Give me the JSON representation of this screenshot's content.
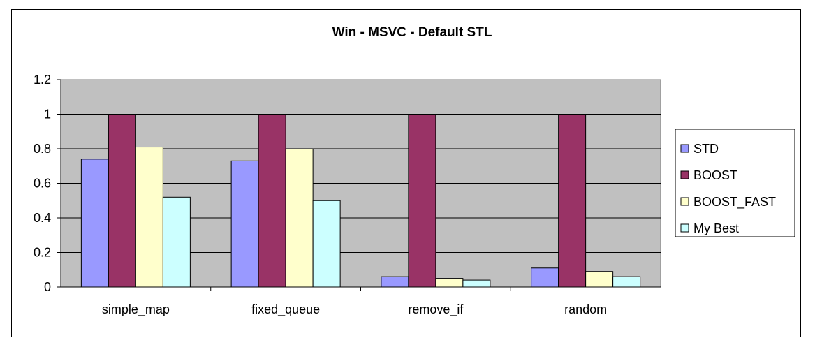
{
  "chart_data": {
    "type": "bar",
    "title": "Win - MSVC - Default STL",
    "xlabel": "",
    "ylabel": "",
    "categories": [
      "simple_map",
      "fixed_queue",
      "remove_if",
      "random"
    ],
    "series": [
      {
        "name": "STD",
        "values": [
          0.74,
          0.73,
          0.06,
          0.11
        ],
        "color": "#9999ff"
      },
      {
        "name": "BOOST",
        "values": [
          1.0,
          1.0,
          1.0,
          1.0
        ],
        "color": "#993366"
      },
      {
        "name": "BOOST_FAST",
        "values": [
          0.81,
          0.8,
          0.05,
          0.09
        ],
        "color": "#ffffcc"
      },
      {
        "name": "My Best",
        "values": [
          0.52,
          0.5,
          0.04,
          0.06
        ],
        "color": "#ccffff"
      }
    ],
    "ylim": [
      0,
      1.2
    ],
    "yticks": [
      "0",
      "0.2",
      "0.4",
      "0.6",
      "0.8",
      "1",
      "1.2"
    ],
    "grid": true,
    "plot_background": "#c0c0c0",
    "legend_position": "right"
  }
}
